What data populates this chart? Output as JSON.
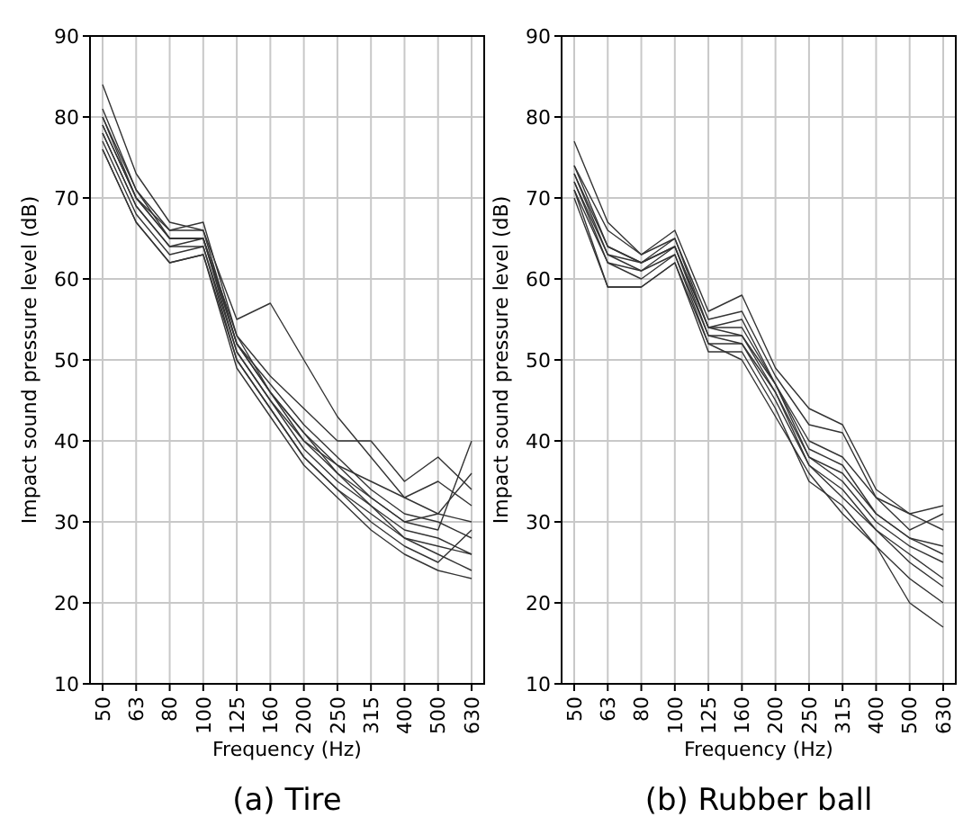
{
  "chart_data": [
    {
      "type": "line",
      "title": "(a) Tire",
      "xlabel": "Frequency (Hz)",
      "ylabel": "Impact sound pressure level (dB)",
      "categories": [
        "50",
        "63",
        "80",
        "100",
        "125",
        "160",
        "200",
        "250",
        "315",
        "400",
        "500",
        "630"
      ],
      "ylim": [
        10,
        90
      ],
      "yticks": [
        10,
        20,
        30,
        40,
        50,
        60,
        70,
        80,
        90
      ],
      "grid": true,
      "line_style": "solid",
      "series": [
        {
          "color": "#333333",
          "values": [
            84,
            73,
            67,
            66,
            55,
            57,
            50,
            43,
            38,
            33,
            31,
            30
          ]
        },
        {
          "color": "#333333",
          "values": [
            81,
            71,
            66,
            67,
            53,
            48,
            44,
            40,
            40,
            35,
            38,
            34
          ]
        },
        {
          "color": "#333333",
          "values": [
            80,
            70,
            65,
            65,
            52,
            46,
            41,
            37,
            33,
            30,
            29,
            40
          ]
        },
        {
          "color": "#333333",
          "values": [
            78,
            69,
            64,
            65,
            51,
            45,
            39,
            35,
            32,
            28,
            27,
            26
          ]
        },
        {
          "color": "#333333",
          "values": [
            76,
            67,
            62,
            63,
            49,
            43,
            37,
            33,
            29,
            26,
            24,
            23
          ]
        },
        {
          "color": "#333333",
          "values": [
            77,
            68,
            63,
            64,
            50,
            44,
            38,
            34,
            30,
            27,
            25,
            29
          ]
        },
        {
          "color": "#333333",
          "values": [
            79,
            70,
            66,
            66,
            52,
            47,
            42,
            38,
            34,
            31,
            30,
            28
          ]
        },
        {
          "color": "#333333",
          "values": [
            80,
            71,
            65,
            65,
            53,
            46,
            41,
            36,
            33,
            30,
            31,
            36
          ]
        },
        {
          "color": "#333333",
          "values": [
            78,
            69,
            64,
            64,
            51,
            45,
            40,
            37,
            35,
            33,
            35,
            32
          ]
        },
        {
          "color": "#333333",
          "values": [
            76,
            67,
            62,
            63,
            50,
            44,
            38,
            34,
            31,
            28,
            26,
            24
          ]
        },
        {
          "color": "#333333",
          "values": [
            79,
            70,
            65,
            65,
            52,
            46,
            40,
            36,
            32,
            29,
            28,
            26
          ]
        }
      ]
    },
    {
      "type": "line",
      "title": "(b) Rubber ball",
      "xlabel": "Frequency (Hz)",
      "ylabel": "Impact sound pressure level (dB)",
      "categories": [
        "50",
        "63",
        "80",
        "100",
        "125",
        "160",
        "200",
        "250",
        "315",
        "400",
        "500",
        "630"
      ],
      "ylim": [
        10,
        90
      ],
      "yticks": [
        10,
        20,
        30,
        40,
        50,
        60,
        70,
        80,
        90
      ],
      "grid": true,
      "line_style": "solid",
      "series": [
        {
          "color": "#333333",
          "values": [
            77,
            67,
            63,
            66,
            56,
            58,
            49,
            44,
            42,
            34,
            31,
            32
          ]
        },
        {
          "color": "#333333",
          "values": [
            74,
            66,
            63,
            65,
            55,
            56,
            48,
            42,
            41,
            33,
            31,
            29
          ]
        },
        {
          "color": "#333333",
          "values": [
            73,
            64,
            62,
            64,
            54,
            54,
            47,
            39,
            37,
            31,
            28,
            27
          ]
        },
        {
          "color": "#333333",
          "values": [
            72,
            63,
            61,
            63,
            53,
            53,
            46,
            38,
            35,
            30,
            27,
            25
          ]
        },
        {
          "color": "#333333",
          "values": [
            71,
            62,
            60,
            63,
            52,
            52,
            45,
            37,
            34,
            29,
            26,
            23
          ]
        },
        {
          "color": "#333333",
          "values": [
            70,
            59,
            59,
            62,
            51,
            51,
            44,
            35,
            32,
            27,
            23,
            20
          ]
        },
        {
          "color": "#333333",
          "values": [
            71,
            59,
            59,
            62,
            52,
            50,
            43,
            36,
            31,
            27,
            20,
            17
          ]
        },
        {
          "color": "#333333",
          "values": [
            74,
            64,
            62,
            65,
            54,
            55,
            47,
            40,
            38,
            33,
            29,
            31
          ]
        },
        {
          "color": "#333333",
          "values": [
            72,
            62,
            61,
            64,
            53,
            52,
            46,
            37,
            33,
            29,
            25,
            22
          ]
        },
        {
          "color": "#333333",
          "values": [
            73,
            63,
            62,
            64,
            54,
            53,
            47,
            38,
            36,
            31,
            28,
            26
          ]
        }
      ]
    }
  ]
}
